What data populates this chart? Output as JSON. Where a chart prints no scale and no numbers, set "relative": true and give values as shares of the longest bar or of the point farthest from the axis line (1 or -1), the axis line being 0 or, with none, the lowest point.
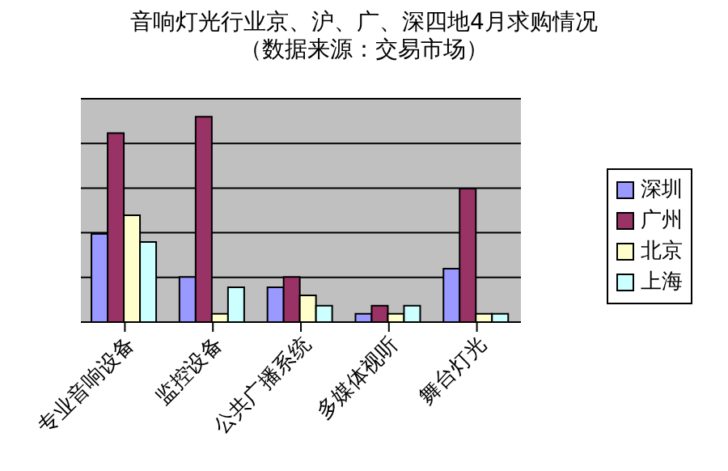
{
  "chart_data": {
    "type": "bar",
    "title": "音响灯光行业京、沪、广、深四地4月求购情况",
    "subtitle": "（数据来源：交易市场）",
    "relative": true,
    "grid": "y",
    "legend": "right",
    "categories": [
      "专业音响设备",
      "监控设备",
      "公共广播系统",
      "多媒体视听",
      "舞台灯光"
    ],
    "series": [
      {
        "name": "深圳",
        "color": "#9999ff",
        "values": [
          0.43,
          0.22,
          0.17,
          0.04,
          0.26
        ]
      },
      {
        "name": "广州",
        "color": "#993366",
        "values": [
          0.92,
          1,
          0.22,
          0.08,
          0.65
        ]
      },
      {
        "name": "北京",
        "color": "#ffffcc",
        "values": [
          0.52,
          0.04,
          0.13,
          0.04,
          0.04
        ]
      },
      {
        "name": "上海",
        "color": "#ccffff",
        "values": [
          0.39,
          0.17,
          0.08,
          0.08,
          0.04
        ]
      }
    ]
  }
}
